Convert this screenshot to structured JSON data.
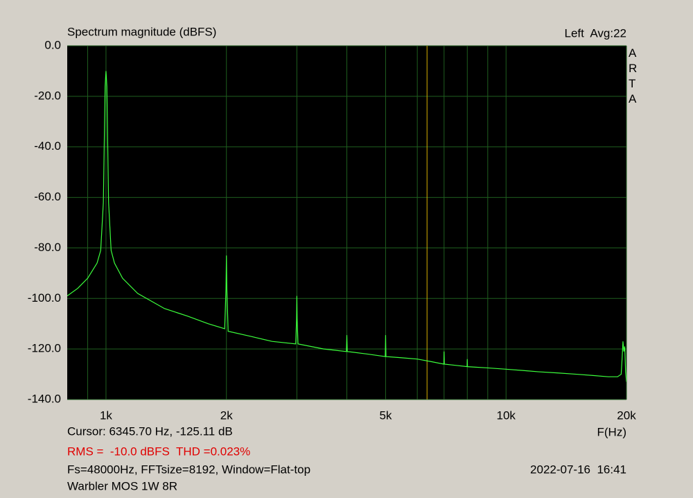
{
  "chart_data": {
    "type": "line",
    "title": "Spectrum magnitude (dBFS)",
    "channel_label": "Left  Avg:22",
    "side_label": "ARTA",
    "x_label": "F(Hz)",
    "log_x": true,
    "xlim": [
      800,
      20000
    ],
    "xticks": [
      {
        "value": 1000,
        "label": "1k"
      },
      {
        "value": 2000,
        "label": "2k"
      },
      {
        "value": 5000,
        "label": "5k"
      },
      {
        "value": 10000,
        "label": "10k"
      },
      {
        "value": 20000,
        "label": "20k"
      }
    ],
    "x_minor_grid": [
      900,
      3000,
      4000,
      6000,
      7000,
      8000,
      9000
    ],
    "ylim": [
      -140,
      0
    ],
    "yticks": [
      {
        "value": 0,
        "label": "0.0"
      },
      {
        "value": -20,
        "label": "-20.0"
      },
      {
        "value": -40,
        "label": "-40.0"
      },
      {
        "value": -60,
        "label": "-60.0"
      },
      {
        "value": -80,
        "label": "-80.0"
      },
      {
        "value": -100,
        "label": "-100.0"
      },
      {
        "value": -120,
        "label": "-120.0"
      },
      {
        "value": -140,
        "label": "-140.0"
      }
    ],
    "grid": true,
    "grid_color": "#1f5f1f",
    "plot_background": "#000000",
    "color": "#3cff3c",
    "cursor_x": 6345.7,
    "cursor_color": "#d8b000",
    "cursor_text": "Cursor: 6345.70 Hz, -125.11 dB",
    "rms_text": "RMS =  -10.0 dBFS  THD =0.023%",
    "settings_text": "Fs=48000Hz, FFTsize=8192, Window=Flat-top",
    "timestamp": "2022-07-16  16:41",
    "device": "Warbler MOS 1W 8R",
    "x": [
      800,
      850,
      900,
      950,
      970,
      985,
      995,
      1000,
      1005,
      1015,
      1030,
      1050,
      1100,
      1200,
      1400,
      1600,
      1800,
      1980,
      1995,
      2000,
      2005,
      2020,
      2300,
      2600,
      2980,
      2995,
      3000,
      3005,
      3020,
      3500,
      3990,
      4000,
      4010,
      4500,
      4990,
      5000,
      5010,
      5500,
      6000,
      6500,
      6990,
      7000,
      7010,
      7500,
      7990,
      8000,
      8010,
      9000,
      10000,
      11000,
      12000,
      13500,
      15000,
      16500,
      18000,
      19000,
      19400,
      19500,
      19600,
      19700,
      19800,
      19900,
      20000
    ],
    "values": [
      -99,
      -96,
      -92,
      -86,
      -81,
      -62,
      -16,
      -10,
      -16,
      -62,
      -81,
      -86,
      -92,
      -98,
      -104,
      -107,
      -110,
      -112,
      -96,
      -83,
      -96,
      -113,
      -115,
      -117,
      -118,
      -108,
      -99,
      -108,
      -118,
      -120,
      -121,
      -114.5,
      -121,
      -122,
      -123,
      -114.5,
      -123,
      -123.5,
      -124,
      -125,
      -126,
      -121,
      -126,
      -126.5,
      -127,
      -124,
      -127,
      -127.5,
      -128,
      -128.5,
      -129,
      -129.5,
      -130,
      -130.5,
      -131,
      -131,
      -130,
      -124,
      -117,
      -121,
      -119,
      -129,
      -133
    ]
  }
}
